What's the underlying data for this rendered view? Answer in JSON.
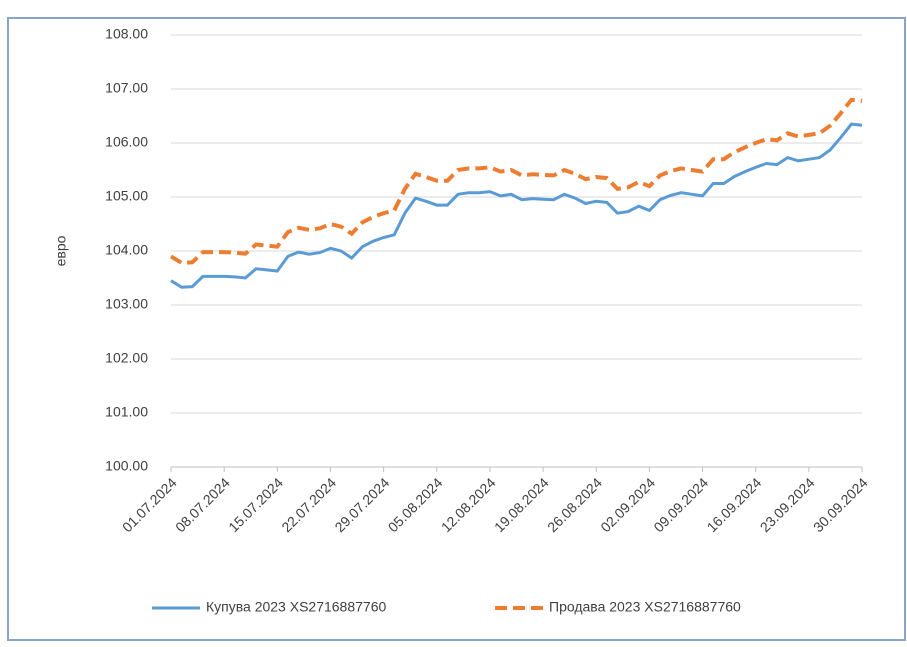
{
  "chart_data": {
    "type": "line",
    "ylabel": "евро",
    "categories": [
      "01.07.2024",
      null,
      null,
      null,
      null,
      "08.07.2024",
      null,
      null,
      null,
      null,
      "15.07.2024",
      null,
      null,
      null,
      null,
      "22.07.2024",
      null,
      null,
      null,
      null,
      "29.07.2024",
      null,
      null,
      null,
      null,
      "05.08.2024",
      null,
      null,
      null,
      null,
      "12.08.2024",
      null,
      null,
      null,
      null,
      "19.08.2024",
      null,
      null,
      null,
      null,
      "26.08.2024",
      null,
      null,
      null,
      null,
      "02.09.2024",
      null,
      null,
      null,
      null,
      "09.09.2024",
      null,
      null,
      null,
      null,
      "16.09.2024",
      null,
      null,
      null,
      null,
      "23.09.2024",
      null,
      null,
      null,
      null,
      "30.09.2024"
    ],
    "series": [
      {
        "name": "Купува 2023 XS2716887760",
        "color": "#5b9bd5",
        "dash": false,
        "values": [
          103.45,
          103.33,
          103.34,
          103.53,
          103.53,
          103.53,
          103.52,
          103.5,
          103.67,
          103.65,
          103.63,
          103.9,
          103.98,
          103.94,
          103.97,
          104.05,
          104.0,
          103.87,
          104.08,
          104.18,
          104.25,
          104.3,
          104.7,
          104.98,
          104.92,
          104.85,
          104.85,
          105.05,
          105.08,
          105.08,
          105.1,
          105.02,
          105.05,
          104.95,
          104.97,
          104.96,
          104.95,
          105.05,
          104.98,
          104.88,
          104.92,
          104.9,
          104.7,
          104.73,
          104.83,
          104.75,
          104.95,
          105.03,
          105.08,
          105.05,
          105.02,
          105.25,
          105.25,
          105.38,
          105.47,
          105.55,
          105.62,
          105.6,
          105.73,
          105.67,
          105.7,
          105.73,
          105.87,
          106.1,
          106.35,
          106.33
        ]
      },
      {
        "name": "Продава 2023 XS2716887760",
        "color": "#ed7d31",
        "dash": true,
        "values": [
          103.9,
          103.78,
          103.79,
          103.98,
          103.98,
          103.98,
          103.97,
          103.95,
          104.12,
          104.1,
          104.08,
          104.35,
          104.43,
          104.39,
          104.42,
          104.5,
          104.45,
          104.32,
          104.53,
          104.63,
          104.7,
          104.75,
          105.15,
          105.43,
          105.37,
          105.3,
          105.3,
          105.5,
          105.53,
          105.53,
          105.55,
          105.47,
          105.5,
          105.4,
          105.42,
          105.41,
          105.4,
          105.5,
          105.43,
          105.33,
          105.37,
          105.35,
          105.15,
          105.18,
          105.28,
          105.2,
          105.4,
          105.48,
          105.53,
          105.5,
          105.47,
          105.7,
          105.7,
          105.83,
          105.92,
          106.0,
          106.07,
          106.05,
          106.18,
          106.12,
          106.15,
          106.18,
          106.32,
          106.55,
          106.8,
          106.78
        ]
      }
    ],
    "ylim": [
      100,
      108
    ],
    "yticks": [
      {
        "value": 100,
        "label": "100.00"
      },
      {
        "value": 101,
        "label": "101.00"
      },
      {
        "value": 102,
        "label": "102.00"
      },
      {
        "value": 103,
        "label": "103.00"
      },
      {
        "value": 104,
        "label": "104.00"
      },
      {
        "value": 105,
        "label": "105.00"
      },
      {
        "value": 106,
        "label": "106.00"
      },
      {
        "value": 107,
        "label": "107.00"
      },
      {
        "value": 108,
        "label": "108.00"
      }
    ],
    "grid": true,
    "legend": "bottom"
  }
}
